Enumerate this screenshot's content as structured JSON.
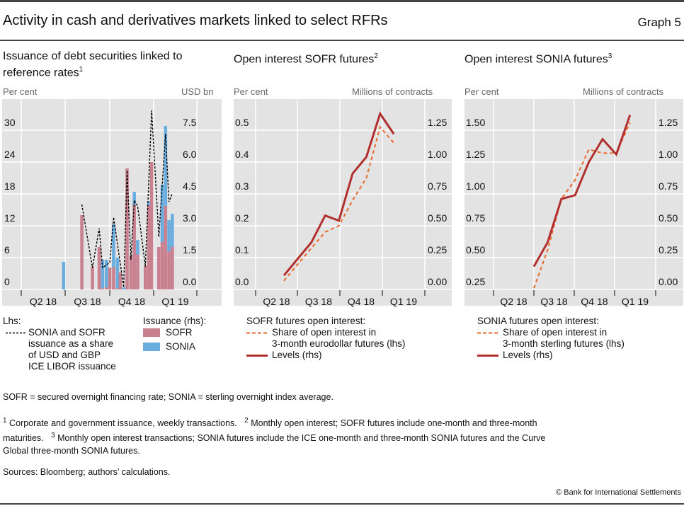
{
  "title": "Activity in cash and derivatives markets linked to select RFRs",
  "graph_label": "Graph 5",
  "colors": {
    "background": "#e3e3e3",
    "sofr_bar": "#c9808f",
    "sonia_bar": "#6aaee0",
    "share_dashed": "#000000",
    "levels_line": "#b22f2f",
    "share_line": "#e8692b"
  },
  "chart_data": [
    {
      "type": "bar",
      "title": "Issuance of debt securities linked to reference rates",
      "title_sup": "1",
      "ylabel_left": "Per cent",
      "ylabel_right": "USD bn",
      "ylim_left": [
        0,
        30
      ],
      "ylim_right": [
        0,
        7.5
      ],
      "yticks_left": [
        "0",
        "6",
        "12",
        "18",
        "24",
        "30"
      ],
      "yticks_right": [
        "0.0",
        "1.5",
        "3.0",
        "4.5",
        "6.0",
        "7.5"
      ],
      "xticks": [
        "Q2 18",
        "Q3 18",
        "Q4 18",
        "Q1 19"
      ],
      "grid": true,
      "stacked": true,
      "bars": [
        {
          "date": "2018-06-28",
          "sofr": 0,
          "sonia": 1.3
        },
        {
          "date": "2018-08-05",
          "sofr": 3.5,
          "sonia": 0
        },
        {
          "date": "2018-08-27",
          "sofr": 1.08,
          "sonia": 0
        },
        {
          "date": "2018-09-10",
          "sofr": 2.0,
          "sonia": 0
        },
        {
          "date": "2018-09-17",
          "sofr": 0.05,
          "sonia": 1.35
        },
        {
          "date": "2018-09-25",
          "sofr": 0.1,
          "sonia": 1.3
        },
        {
          "date": "2018-10-02",
          "sofr": 1.03,
          "sonia": 0
        },
        {
          "date": "2018-10-10",
          "sofr": 1.05,
          "sonia": 2.03
        },
        {
          "date": "2018-10-18",
          "sofr": 0.05,
          "sonia": 1.45
        },
        {
          "date": "2018-10-24",
          "sofr": 0.8,
          "sonia": 0
        },
        {
          "date": "2018-10-31",
          "sofr": 0,
          "sonia": 0.1
        },
        {
          "date": "2018-11-07",
          "sofr": 5.7,
          "sonia": 0
        },
        {
          "date": "2018-11-15",
          "sofr": 1.6,
          "sonia": 0
        },
        {
          "date": "2018-11-22",
          "sofr": 4.0,
          "sonia": 0.6
        },
        {
          "date": "2018-11-29",
          "sofr": 1.65,
          "sonia": 0.68
        },
        {
          "date": "2018-12-15",
          "sofr": 1.1,
          "sonia": 0
        },
        {
          "date": "2018-12-22",
          "sofr": 3.97,
          "sonia": 0.18
        },
        {
          "date": "2018-12-28",
          "sofr": 6.0,
          "sonia": 0
        },
        {
          "date": "2019-01-12",
          "sofr": 2.0,
          "sonia": 0
        },
        {
          "date": "2019-01-19",
          "sofr": 2.24,
          "sonia": 2.7
        },
        {
          "date": "2019-01-26",
          "sofr": 3.94,
          "sonia": 3.76
        },
        {
          "date": "2019-02-02",
          "sofr": 1.79,
          "sonia": 1.48
        },
        {
          "date": "2019-02-09",
          "sofr": 2.0,
          "sonia": 1.56
        }
      ],
      "share_line": [
        {
          "date": "2018-08-05",
          "value": 16.0
        },
        {
          "date": "2018-08-27",
          "value": 4.1
        },
        {
          "date": "2018-09-10",
          "value": 11.5
        },
        {
          "date": "2018-09-17",
          "value": 4.1
        },
        {
          "date": "2018-10-02",
          "value": 5.1
        },
        {
          "date": "2018-10-10",
          "value": 13.6
        },
        {
          "date": "2018-10-31",
          "value": 0.4
        },
        {
          "date": "2018-11-07",
          "value": 22.4
        },
        {
          "date": "2018-11-15",
          "value": 5.6
        },
        {
          "date": "2018-11-22",
          "value": 16.8
        },
        {
          "date": "2018-11-29",
          "value": 15.7
        },
        {
          "date": "2018-12-15",
          "value": 4.3
        },
        {
          "date": "2018-12-28",
          "value": 33.7
        },
        {
          "date": "2019-01-12",
          "value": 9.9
        },
        {
          "date": "2019-01-26",
          "value": 29.3
        },
        {
          "date": "2019-02-02",
          "value": 16.5
        },
        {
          "date": "2019-02-09",
          "value": 18.1
        }
      ],
      "legend": {
        "lhs_title": "Lhs:",
        "dashed_label": [
          "SONIA and SOFR",
          "issuance as a share",
          "of USD and GBP",
          "ICE LIBOR issuance"
        ],
        "rhs_title": "Issuance (rhs):",
        "sofr_label": "SOFR",
        "sonia_label": "SONIA"
      }
    },
    {
      "type": "line",
      "title": "Open interest SOFR futures",
      "title_sup": "2",
      "ylabel_left": "Per cent",
      "ylabel_right": "Millions of contracts",
      "ylim_left": [
        0,
        0.5
      ],
      "ylim_right": [
        0,
        1.25
      ],
      "yticks_left": [
        "0.0",
        "0.1",
        "0.2",
        "0.3",
        "0.4",
        "0.5"
      ],
      "yticks_right": [
        "0.00",
        "0.25",
        "0.50",
        "0.75",
        "1.00",
        "1.25"
      ],
      "xticks": [
        "Q2 18",
        "Q3 18",
        "Q4 18",
        "Q1 19"
      ],
      "grid": true,
      "x": [
        "2018-05",
        "2018-06",
        "2018-07",
        "2018-08",
        "2018-09",
        "2018-10",
        "2018-11",
        "2018-12",
        "2019-01"
      ],
      "series": [
        {
          "name": "Share of open interest in 3-month eurodollar futures (lhs)",
          "axis": "left",
          "style": "dashed",
          "values": [
            0.027,
            0.079,
            0.13,
            0.18,
            0.2,
            0.28,
            0.35,
            0.51,
            0.46
          ]
        },
        {
          "name": "Levels (rhs)",
          "axis": "right",
          "style": "solid",
          "values": [
            0.11,
            0.24,
            0.37,
            0.58,
            0.54,
            0.91,
            1.04,
            1.38,
            1.22
          ]
        }
      ],
      "legend": {
        "title": "SOFR futures open interest:",
        "dashed_label": [
          "Share of open interest in",
          "3-month eurodollar futures (lhs)"
        ],
        "solid_label": "Levels (rhs)"
      }
    },
    {
      "type": "line",
      "title": "Open interest SONIA futures",
      "title_sup": "3",
      "ylabel_left": "Per cent",
      "ylabel_right": "Millions of contracts",
      "ylim_left": [
        0.25,
        1.5
      ],
      "ylim_right": [
        0,
        1.25
      ],
      "yticks_left": [
        "0.25",
        "0.50",
        "0.75",
        "1.00",
        "1.25",
        "1.50"
      ],
      "yticks_right": [
        "0.00",
        "0.25",
        "0.50",
        "0.75",
        "1.00",
        "1.25"
      ],
      "xticks": [
        "Q2 18",
        "Q3 18",
        "Q4 18",
        "Q1 19"
      ],
      "grid": true,
      "x": [
        "2018-06",
        "2018-07",
        "2018-08",
        "2018-09",
        "2018-10",
        "2018-11",
        "2018-12",
        "2019-01"
      ],
      "series": [
        {
          "name": "Share of open interest in 3-month sterling futures (lhs)",
          "axis": "left",
          "style": "dashed",
          "values": [
            0.26,
            0.56,
            0.96,
            1.11,
            1.35,
            1.32,
            1.32,
            1.56
          ]
        },
        {
          "name": "Levels (rhs)",
          "axis": "right",
          "style": "solid",
          "values": [
            0.18,
            0.37,
            0.71,
            0.74,
            1.0,
            1.18,
            1.06,
            1.37
          ]
        }
      ],
      "legend": {
        "title": "SONIA futures open interest:",
        "dashed_label": [
          "Share of open interest in",
          "3-month sterling futures (lhs)"
        ],
        "solid_label": "Levels (rhs)"
      }
    }
  ],
  "abbrev": "SOFR = secured overnight financing rate; SONIA = sterling overnight index average.",
  "footnotes": {
    "n1": "Corporate and government issuance, weekly transactions.",
    "n2a": "Monthly open interest; SOFR futures include one-month and three-month",
    "n2b": "maturities.",
    "n3": "Monthly open interest transactions; SONIA futures include the ICE one-month and three-month SONIA futures and the Curve",
    "n3b": "Global three-month SONIA futures."
  },
  "sources": "Sources: Bloomberg; authors’ calculations.",
  "copyright": "© Bank for International Settlements"
}
